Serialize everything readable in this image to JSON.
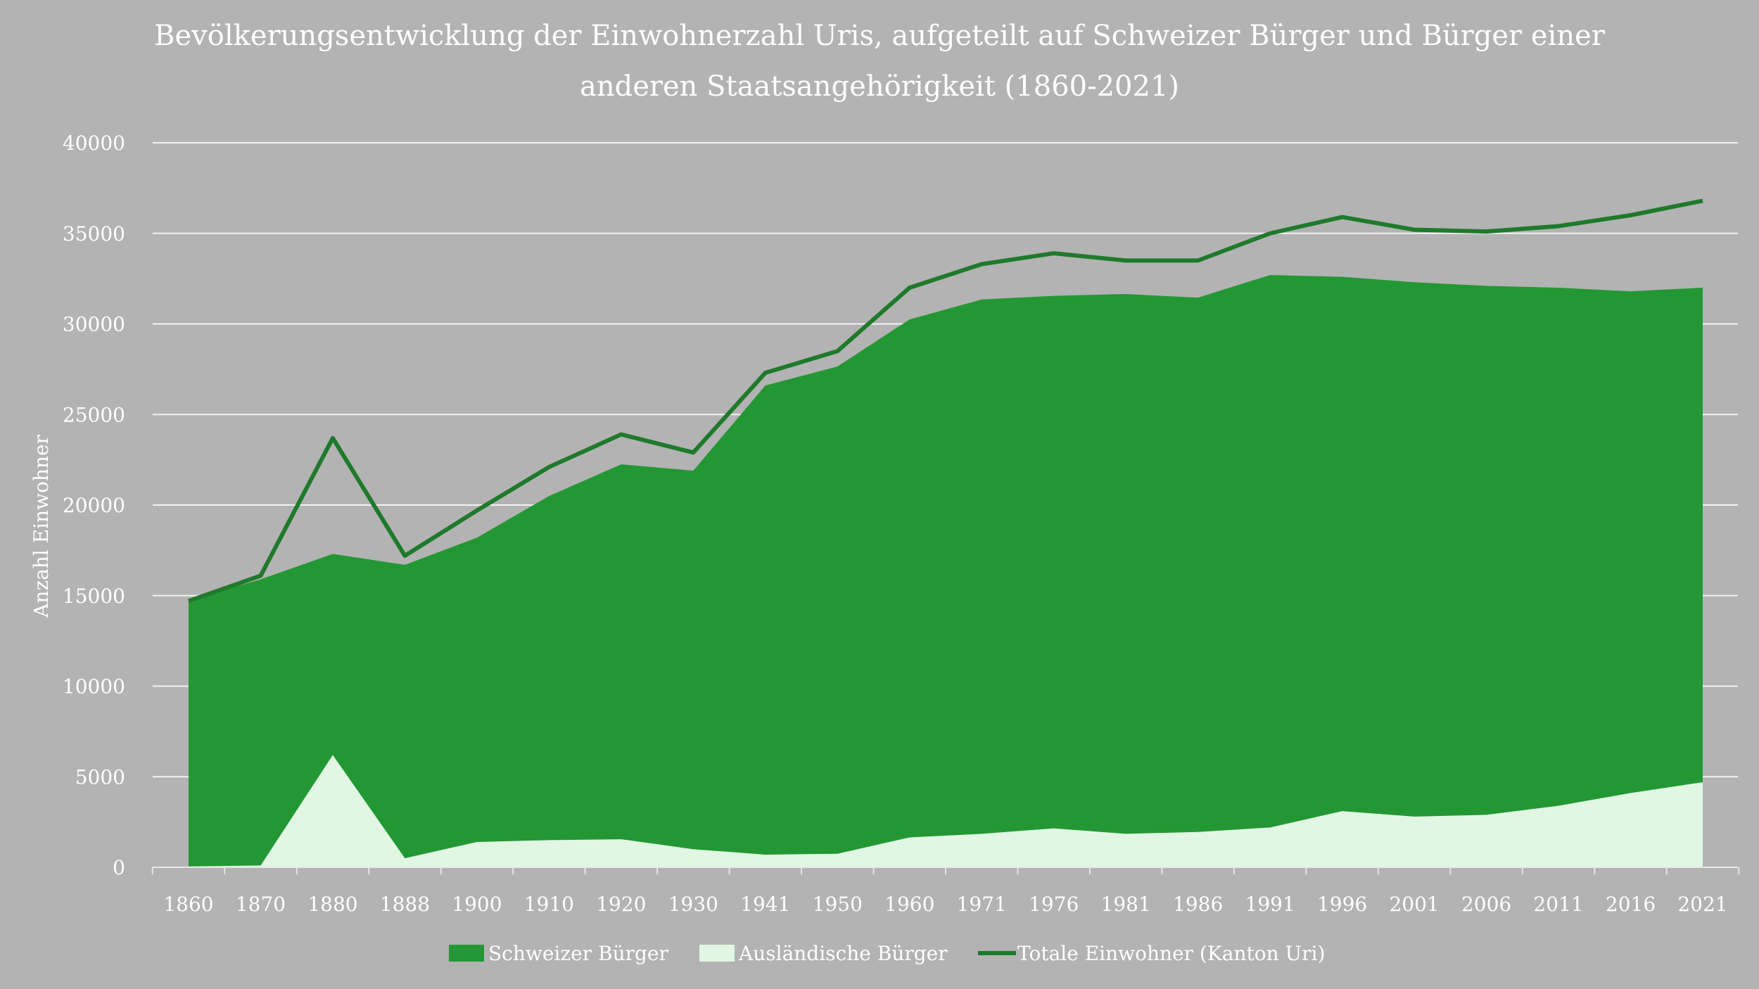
{
  "chart_data": {
    "type": "area",
    "title_lines": [
      "Bevölkerungsentwicklung der Einwohnerzahl Uris, aufgeteilt auf Schweizer Bürger und Bürger einer",
      "anderen Staatsangehörigkeit (1860-2021)"
    ],
    "xlabel": "",
    "ylabel": "Anzahl Einwohner",
    "ylim": [
      0,
      40000
    ],
    "yticks": [
      0,
      5000,
      10000,
      15000,
      20000,
      25000,
      30000,
      35000,
      40000
    ],
    "grid": true,
    "legend_position": "bottom-center",
    "categories": [
      "1860",
      "1870",
      "1880",
      "1888",
      "1900",
      "1910",
      "1920",
      "1930",
      "1941",
      "1950",
      "1960",
      "1971",
      "1976",
      "1981",
      "1986",
      "1991",
      "1996",
      "2001",
      "2006",
      "2011",
      "2016",
      "2021"
    ],
    "series": [
      {
        "name": "Schweizer Bürger",
        "type": "stacked-area",
        "color": "#239734",
        "values": [
          14700,
          15800,
          11100,
          16200,
          16800,
          19000,
          20700,
          20900,
          25900,
          26900,
          28600,
          29500,
          29400,
          29800,
          29500,
          30500,
          29500,
          29500,
          29200,
          28600,
          27700,
          27300
        ]
      },
      {
        "name": "Ausländische Bürger",
        "type": "stacked-area",
        "color": "#e1f7e3",
        "values": [
          50,
          100,
          6200,
          500,
          1400,
          1500,
          1550,
          1000,
          700,
          750,
          1650,
          1850,
          2150,
          1850,
          1950,
          2200,
          3100,
          2800,
          2900,
          3400,
          4100,
          4700
        ]
      },
      {
        "name": "Totale Einwohner (Kanton Uri)",
        "type": "line",
        "color": "#1f7a2c",
        "values": [
          14700,
          16100,
          23700,
          17200,
          19700,
          22100,
          23900,
          22900,
          27300,
          28500,
          32000,
          33300,
          33900,
          33500,
          33500,
          35000,
          35900,
          35200,
          35100,
          35400,
          36000,
          36800
        ]
      }
    ]
  },
  "colors": {
    "background": "#b3b3b3",
    "text": "#ffffff",
    "gridline": "#f2f2f2",
    "axis": "#e6e6e6"
  }
}
